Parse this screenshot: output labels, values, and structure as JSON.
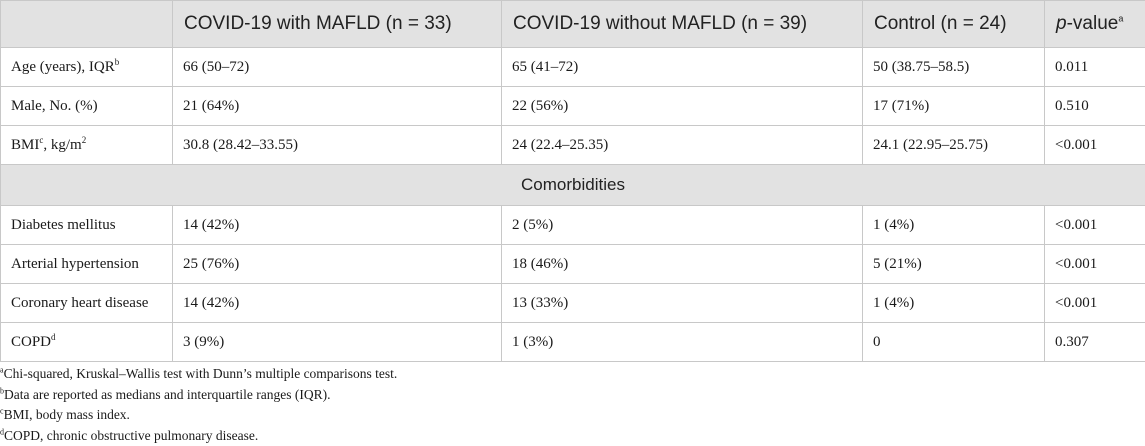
{
  "table": {
    "headers": {
      "col0": "",
      "col1": "COVID-19 with MAFLD (n = 33)",
      "col2": "COVID-19 without MAFLD (n = 39)",
      "col3": "Control (n = 24)",
      "col4_italic": "p",
      "col4_rest": "-value",
      "col4_sup": "a"
    },
    "rows": [
      {
        "label": "Age (years), IQR",
        "sup": "b",
        "unit": "",
        "c1": "66 (50–72)",
        "c2": "65 (41–72)",
        "c3": "50 (38.75–58.5)",
        "p": "0.011"
      },
      {
        "label": "Male, No. (%)",
        "sup": "",
        "unit": "",
        "c1": "21 (64%)",
        "c2": "22 (56%)",
        "c3": "17 (71%)",
        "p": "0.510"
      },
      {
        "label": "BMI",
        "sup": "c",
        "unit": ", kg/m",
        "unit_sup": "2",
        "c1": "30.8 (28.42–33.55)",
        "c2": "24 (22.4–25.35)",
        "c3": "24.1 (22.95–25.75)",
        "p": "<0.001"
      }
    ],
    "section_label": "Comorbidities",
    "rows2": [
      {
        "label": "Diabetes mellitus",
        "sup": "",
        "c1": "14 (42%)",
        "c2": "2 (5%)",
        "c3": "1 (4%)",
        "p": "<0.001"
      },
      {
        "label": "Arterial hypertension",
        "sup": "",
        "c1": "25 (76%)",
        "c2": "18 (46%)",
        "c3": "5 (21%)",
        "p": "<0.001"
      },
      {
        "label": "Coronary heart disease",
        "sup": "",
        "c1": "14 (42%)",
        "c2": "13 (33%)",
        "c3": "1 (4%)",
        "p": "<0.001"
      },
      {
        "label": "COPD",
        "sup": "d",
        "c1": "3 (9%)",
        "c2": "1 (3%)",
        "c3": "0",
        "p": "0.307"
      }
    ]
  },
  "footnotes": [
    {
      "mark": "a",
      "text": "Chi-squared, Kruskal–Wallis test with Dunn’s multiple comparisons test."
    },
    {
      "mark": "b",
      "text": "Data are reported as medians and interquartile ranges (IQR)."
    },
    {
      "mark": "c",
      "text": "BMI, body mass index."
    },
    {
      "mark": "d",
      "text": "COPD, chronic obstructive pulmonary disease."
    }
  ]
}
